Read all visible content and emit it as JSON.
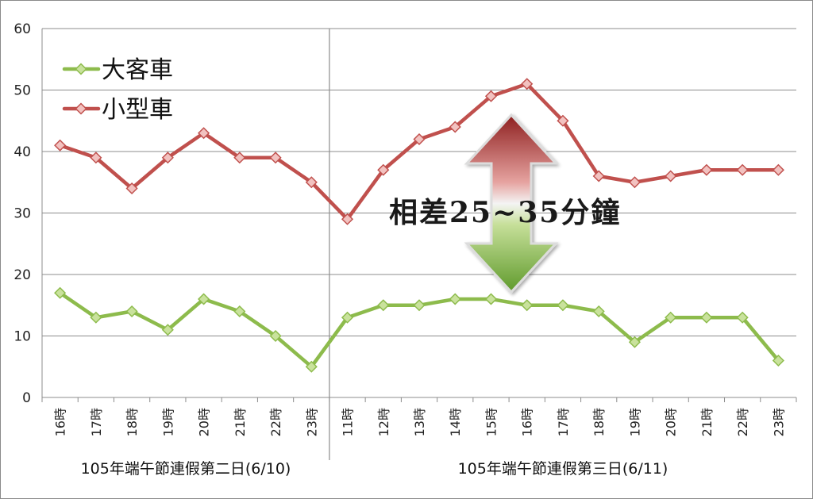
{
  "chart_data": {
    "type": "line",
    "ylim": [
      0,
      60
    ],
    "yticks": [
      0,
      10,
      20,
      30,
      40,
      50,
      60
    ],
    "grid": true,
    "legend_position": "top-left",
    "categories": [
      "16時",
      "17時",
      "18時",
      "19時",
      "20時",
      "21時",
      "22時",
      "23時",
      "11時",
      "12時",
      "13時",
      "14時",
      "15時",
      "16時",
      "17時",
      "18時",
      "19時",
      "20時",
      "21時",
      "22時",
      "23時"
    ],
    "groups": [
      {
        "label": "105年端午節連假第二日(6/10)",
        "start": 0,
        "end": 7
      },
      {
        "label": "105年端午節連假第三日(6/11)",
        "start": 8,
        "end": 20
      }
    ],
    "series": [
      {
        "name": "大客車",
        "color": "#8dbb4c",
        "marker_color": "#c9e29c",
        "values": [
          17,
          13,
          14,
          11,
          16,
          14,
          10,
          5,
          13,
          15,
          15,
          16,
          16,
          15,
          15,
          14,
          9,
          13,
          13,
          13,
          6
        ]
      },
      {
        "name": "小型車",
        "color": "#c0504d",
        "marker_color": "#f2c2c0",
        "values": [
          41,
          39,
          34,
          39,
          43,
          39,
          39,
          35,
          29,
          37,
          42,
          44,
          49,
          51,
          45,
          36,
          35,
          36,
          37,
          37,
          37
        ]
      }
    ],
    "annotation": "相差25~35分鐘"
  }
}
